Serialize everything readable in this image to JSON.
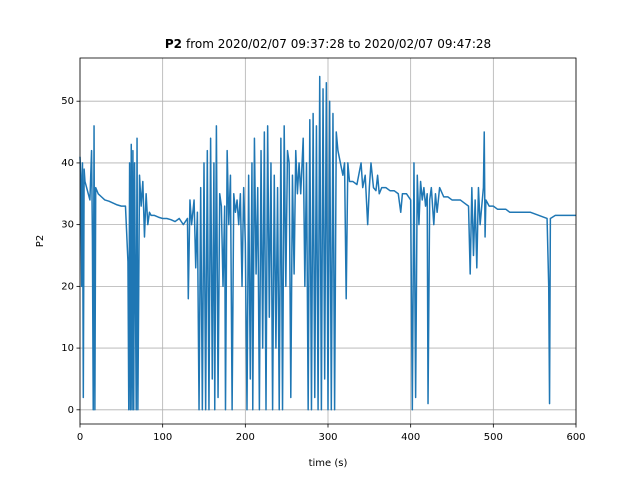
{
  "chart_data": {
    "type": "line",
    "title_prefix": "P2",
    "title": "from 2020/02/07 09:37:28 to 2020/02/07 09:47:28",
    "xlabel": "time (s)",
    "ylabel": "P2",
    "color": "#1f77b4",
    "xlim": [
      0,
      600
    ],
    "ylim": [
      -2.3,
      57
    ],
    "xticks": [
      0,
      100,
      200,
      300,
      400,
      500,
      600
    ],
    "yticks": [
      0,
      10,
      20,
      30,
      40,
      50
    ],
    "grid": true,
    "x": [
      0,
      1,
      2,
      3,
      4,
      5,
      6,
      8,
      10,
      12,
      14,
      15,
      16,
      17,
      18,
      19,
      22,
      26,
      30,
      35,
      40,
      45,
      50,
      55,
      58,
      59,
      60,
      61,
      62,
      63,
      64,
      65,
      66,
      68,
      69,
      70,
      72,
      74,
      76,
      78,
      80,
      82,
      84,
      86,
      90,
      95,
      100,
      105,
      110,
      115,
      120,
      125,
      130,
      131,
      133,
      135,
      138,
      140,
      142,
      144,
      146,
      148,
      150,
      152,
      154,
      156,
      158,
      160,
      162,
      163,
      165,
      167,
      169,
      171,
      173,
      175,
      176,
      178,
      180,
      182,
      184,
      186,
      188,
      190,
      192,
      194,
      196,
      198,
      200,
      202,
      204,
      206,
      208,
      209,
      211,
      213,
      215,
      217,
      219,
      221,
      223,
      225,
      227,
      229,
      231,
      233,
      235,
      237,
      239,
      241,
      243,
      245,
      247,
      249,
      251,
      253,
      255,
      257,
      259,
      261,
      263,
      265,
      267,
      270,
      272,
      274,
      276,
      278,
      280,
      282,
      284,
      286,
      288,
      290,
      292,
      294,
      296,
      298,
      300,
      302,
      304,
      306,
      308,
      310,
      312,
      315,
      318,
      320,
      322,
      324,
      326,
      330,
      335,
      340,
      342,
      345,
      348,
      350,
      352,
      355,
      358,
      360,
      362,
      365,
      370,
      375,
      380,
      385,
      388,
      390,
      395,
      400,
      402,
      404,
      406,
      408,
      410,
      412,
      414,
      416,
      418,
      420,
      421,
      423,
      425,
      428,
      430,
      432,
      435,
      440,
      445,
      450,
      455,
      460,
      465,
      470,
      472,
      474,
      476,
      478,
      480,
      482,
      484,
      488,
      489,
      490,
      491,
      495,
      500,
      505,
      510,
      515,
      520,
      525,
      530,
      535,
      540,
      545,
      565,
      567,
      568,
      569,
      575,
      580,
      585,
      590,
      595,
      600
    ],
    "values": [
      41,
      38,
      20,
      40,
      2,
      39,
      37,
      36,
      35,
      34,
      42,
      28,
      0,
      46,
      0,
      36,
      35,
      34.5,
      34,
      33.8,
      33.5,
      33.2,
      33,
      33,
      24,
      0,
      40,
      0,
      43,
      0,
      42,
      0,
      40,
      0,
      44,
      0,
      38,
      33,
      37,
      28,
      35,
      30,
      32,
      31.5,
      31.5,
      31.2,
      31,
      31,
      30.8,
      30.5,
      31,
      30,
      31,
      18,
      34,
      30,
      34,
      23,
      32,
      0,
      36,
      0,
      40,
      0,
      42,
      0,
      44,
      5,
      40,
      0,
      46,
      2,
      35,
      33,
      20,
      33,
      0,
      42,
      30,
      38,
      0,
      35,
      32,
      34,
      30,
      35,
      20,
      36,
      27,
      0,
      38,
      5,
      40,
      0,
      44,
      22,
      36,
      0,
      42,
      10,
      45,
      0,
      46,
      15,
      40,
      0,
      38,
      10,
      36,
      0,
      44,
      0,
      46,
      20,
      42,
      40,
      2,
      38,
      22,
      42,
      35,
      40,
      35,
      44,
      20,
      40,
      0,
      47,
      0,
      48,
      2,
      46,
      0,
      54,
      0,
      52,
      5,
      53,
      0,
      50,
      0,
      48,
      0,
      45,
      42,
      40,
      38,
      40,
      18,
      40,
      37,
      37,
      36.5,
      40,
      36,
      38,
      30,
      36,
      40,
      36,
      35.5,
      38,
      35,
      36,
      36,
      35.5,
      35.5,
      35,
      32,
      35,
      35,
      34,
      0,
      40,
      2,
      38,
      30,
      37,
      34,
      36,
      33,
      35,
      1,
      34,
      36,
      30,
      35,
      32,
      36,
      34.5,
      34.5,
      34,
      34,
      34,
      33.5,
      33,
      22,
      36,
      25,
      34,
      23,
      36,
      30,
      36,
      45,
      28,
      34,
      33,
      33,
      32.5,
      32.5,
      32.5,
      32,
      32,
      32,
      32,
      32,
      32,
      31,
      20,
      1,
      31,
      31.5,
      31.5,
      31.5,
      31.5,
      31.5,
      31.5
    ]
  }
}
